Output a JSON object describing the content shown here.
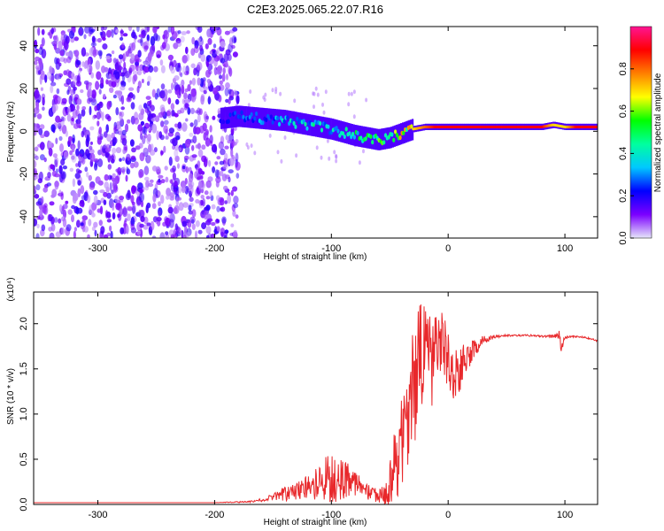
{
  "figure": {
    "title": "C2E3.2025.065.22.07.R16"
  },
  "chart_data": [
    {
      "type": "heatmap",
      "title": "C2E3.2025.065.22.07.R16",
      "xlabel": "Height of straight line (km)",
      "ylabel": "Frequency (Hz)",
      "xlim": [
        -355,
        128
      ],
      "ylim": [
        -50,
        49
      ],
      "x_ticks": [
        -300,
        -200,
        -100,
        0,
        100
      ],
      "x_tick_labels": [
        "-300",
        "-200",
        "-100",
        "0",
        "100"
      ],
      "y_ticks": [
        -40,
        -20,
        0,
        20,
        40
      ],
      "y_tick_labels": [
        "-40",
        "-20",
        "0",
        "20",
        "40"
      ],
      "colorbar": {
        "label": "Normalized spectral amplitude",
        "range": [
          0,
          1
        ],
        "ticks": [
          0.0,
          0.2,
          0.4,
          0.6,
          0.8
        ],
        "tick_labels": [
          "0.0",
          "0.2",
          "0.4",
          "0.6",
          "0.8"
        ],
        "colors": [
          "#e6e6fa",
          "#7b00ff",
          "#0000ff",
          "#00c8ff",
          "#00ff9f",
          "#00ff00",
          "#ffff00",
          "#ff8000",
          "#ff0000",
          "#ff1493"
        ]
      },
      "ridge": {
        "x": [
          -195,
          -180,
          -160,
          -140,
          -120,
          -100,
          -80,
          -70,
          -60,
          -50,
          -40,
          -30,
          -20,
          -10,
          0,
          20,
          40,
          60,
          80,
          90,
          100,
          110,
          128
        ],
        "frequency": [
          6,
          7,
          6,
          5,
          3,
          1,
          -2,
          -3,
          -4,
          -3,
          -1,
          1,
          2,
          2,
          2,
          2,
          2,
          2,
          2,
          3,
          2,
          2,
          2
        ],
        "amplitude": [
          0.2,
          0.25,
          0.3,
          0.35,
          0.4,
          0.4,
          0.45,
          0.5,
          0.55,
          0.6,
          0.65,
          0.7,
          0.8,
          0.9,
          0.9,
          0.9,
          0.9,
          0.9,
          0.9,
          0.7,
          0.7,
          0.9,
          0.9
        ]
      },
      "noise_region_x": [
        -355,
        -180
      ]
    },
    {
      "type": "line",
      "xlabel": "Height of straight line (km)",
      "ylabel": "SNR (10 * v/v)",
      "y_scale_label": "(x10⁴)",
      "xlim": [
        -355,
        128
      ],
      "ylim": [
        0,
        2.35
      ],
      "x_ticks": [
        -300,
        -200,
        -100,
        0,
        100
      ],
      "x_tick_labels": [
        "-300",
        "-200",
        "-100",
        "0",
        "100"
      ],
      "y_ticks": [
        0,
        0.5,
        1.0,
        1.5,
        2.0
      ],
      "y_tick_labels": [
        "0.0",
        "0.5",
        "1.0",
        "1.5",
        "2.0"
      ],
      "line_color": "#e8282b",
      "series": [
        {
          "x": [
            -355,
            -300,
            -250,
            -200,
            -170,
            -160,
            -150,
            -140,
            -130,
            -120,
            -110,
            -100,
            -90,
            -80,
            -70,
            -60,
            -55,
            -50,
            -45,
            -40,
            -35,
            -30,
            -25,
            -20,
            -15,
            -10,
            -5,
            0,
            5,
            10,
            15,
            20,
            25,
            30,
            40,
            50,
            60,
            70,
            80,
            90,
            95,
            97,
            100,
            110,
            120,
            128
          ],
          "y": [
            0.02,
            0.02,
            0.02,
            0.02,
            0.03,
            0.05,
            0.08,
            0.12,
            0.14,
            0.2,
            0.25,
            0.3,
            0.3,
            0.22,
            0.15,
            0.1,
            0.1,
            0.2,
            0.45,
            0.7,
            1.0,
            1.3,
            1.55,
            1.75,
            1.6,
            1.7,
            1.8,
            1.55,
            1.45,
            1.5,
            1.6,
            1.7,
            1.75,
            1.82,
            1.86,
            1.87,
            1.87,
            1.87,
            1.86,
            1.86,
            1.88,
            1.72,
            1.85,
            1.86,
            1.84,
            1.81
          ],
          "spread": [
            0.0,
            0.0,
            0.0,
            0.0,
            0.01,
            0.02,
            0.04,
            0.08,
            0.1,
            0.15,
            0.2,
            0.3,
            0.25,
            0.15,
            0.1,
            0.08,
            0.1,
            0.3,
            0.45,
            0.5,
            0.6,
            0.7,
            0.7,
            0.6,
            0.7,
            0.5,
            0.4,
            0.35,
            0.3,
            0.3,
            0.2,
            0.12,
            0.08,
            0.05,
            0.02,
            0.01,
            0.01,
            0.01,
            0.01,
            0.02,
            0.05,
            0.05,
            0.02,
            0.01,
            0.01,
            0.01
          ]
        }
      ]
    }
  ]
}
